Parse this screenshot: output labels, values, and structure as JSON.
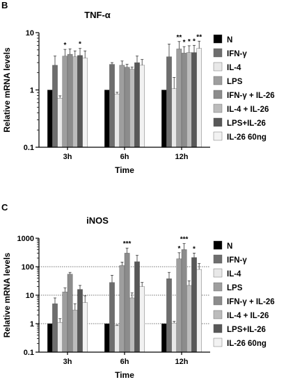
{
  "chart_data": [
    {
      "panel": "B",
      "type": "bar",
      "title": "TNF-α",
      "xlabel": "Time",
      "ylabel": "Relative mRNA levels",
      "yscale": "log",
      "ylim": [
        0.1,
        10
      ],
      "yticks": [
        "0.1",
        "1",
        "10"
      ],
      "reference_lines": [],
      "legend_position": "right",
      "categories": [
        "3h",
        "6h",
        "12h"
      ],
      "series": [
        {
          "name": "N",
          "color": "#000000",
          "values": [
            1,
            1,
            1
          ],
          "errors": [
            0,
            0,
            0
          ]
        },
        {
          "name": "IFN-γ",
          "color": "#6e6e6e",
          "values": [
            2.7,
            2.8,
            3.8
          ],
          "errors": [
            1.2,
            0.2,
            2.5
          ]
        },
        {
          "name": "IL-4",
          "color": "#e8e8e8",
          "values": [
            0.72,
            0.85,
            1.05
          ],
          "errors": [
            0.07,
            0.06,
            0.6
          ]
        },
        {
          "name": "LPS",
          "color": "#9e9e9e",
          "values": [
            3.9,
            2.7,
            5.2
          ],
          "errors": [
            1.2,
            0.5,
            1.8
          ]
        },
        {
          "name": "IFN-γ + IL-26",
          "color": "#8c8c8c",
          "values": [
            4.2,
            2.5,
            4.4
          ],
          "errors": [
            1.0,
            0.3,
            1.3
          ]
        },
        {
          "name": "IL-4 + IL-26",
          "color": "#bcbcbc",
          "values": [
            3.8,
            2.3,
            4.5
          ],
          "errors": [
            1.0,
            0.2,
            1.4
          ]
        },
        {
          "name": "LPS+IL-26",
          "color": "#585858",
          "values": [
            4.0,
            3.0,
            4.5
          ],
          "errors": [
            1.3,
            0.9,
            1.5
          ]
        },
        {
          "name": "IL-26 60ng",
          "color": "#f2f2f2",
          "values": [
            3.6,
            2.7,
            5.3
          ],
          "errors": [
            1.2,
            0.7,
            1.8
          ]
        }
      ],
      "annotations": [
        {
          "text": "*",
          "category": "3h",
          "series": "LPS"
        },
        {
          "text": "*",
          "category": "3h",
          "series": "LPS+IL-26"
        },
        {
          "text": "**",
          "category": "12h",
          "series": "LPS"
        },
        {
          "text": "*",
          "category": "12h",
          "series": "IFN-γ + IL-26"
        },
        {
          "text": "*",
          "category": "12h",
          "series": "IL-4 + IL-26"
        },
        {
          "text": "*",
          "category": "12h",
          "series": "LPS+IL-26"
        },
        {
          "text": "**",
          "category": "12h",
          "series": "IL-26 60ng"
        }
      ]
    },
    {
      "panel": "C",
      "type": "bar",
      "title": "iNOS",
      "xlabel": "Time",
      "ylabel": "Relative mRNA levels",
      "yscale": "log",
      "ylim": [
        0.1,
        1000
      ],
      "yticks": [
        "0.1",
        "1",
        "10",
        "100",
        "1000"
      ],
      "reference_lines": [
        1,
        10,
        100
      ],
      "legend_position": "right",
      "categories": [
        "3h",
        "6h",
        "12h"
      ],
      "series": [
        {
          "name": "N",
          "color": "#000000",
          "values": [
            1,
            1,
            1
          ],
          "errors": [
            0,
            0,
            0
          ]
        },
        {
          "name": "IFN-γ",
          "color": "#6e6e6e",
          "values": [
            5,
            28,
            38
          ],
          "errors": [
            3,
            22,
            25
          ]
        },
        {
          "name": "IL-4",
          "color": "#e8e8e8",
          "values": [
            1.1,
            0.85,
            1.05
          ],
          "errors": [
            0.4,
            0.05,
            0.15
          ]
        },
        {
          "name": "LPS",
          "color": "#9e9e9e",
          "values": [
            13,
            110,
            190
          ],
          "errors": [
            5,
            35,
            120
          ]
        },
        {
          "name": "IFN-γ + IL-26",
          "color": "#8c8c8c",
          "values": [
            55,
            300,
            400
          ],
          "errors": [
            8,
            150,
            250
          ]
        },
        {
          "name": "IL-4 + IL-26",
          "color": "#bcbcbc",
          "values": [
            3,
            8,
            22
          ],
          "errors": [
            2,
            4,
            10
          ]
        },
        {
          "name": "LPS+IL-26",
          "color": "#585858",
          "values": [
            16,
            150,
            210
          ],
          "errors": [
            6,
            100,
            90
          ]
        },
        {
          "name": "IL-26 60ng",
          "color": "#f2f2f2",
          "values": [
            5.5,
            20,
            80
          ],
          "errors": [
            4,
            8,
            50
          ]
        }
      ],
      "annotations": [
        {
          "text": "***",
          "category": "6h",
          "series": "IFN-γ + IL-26"
        },
        {
          "text": "*",
          "category": "12h",
          "series": "LPS"
        },
        {
          "text": "***",
          "category": "12h",
          "series": "IFN-γ + IL-26"
        },
        {
          "text": "*",
          "category": "12h",
          "series": "LPS+IL-26"
        }
      ]
    }
  ]
}
